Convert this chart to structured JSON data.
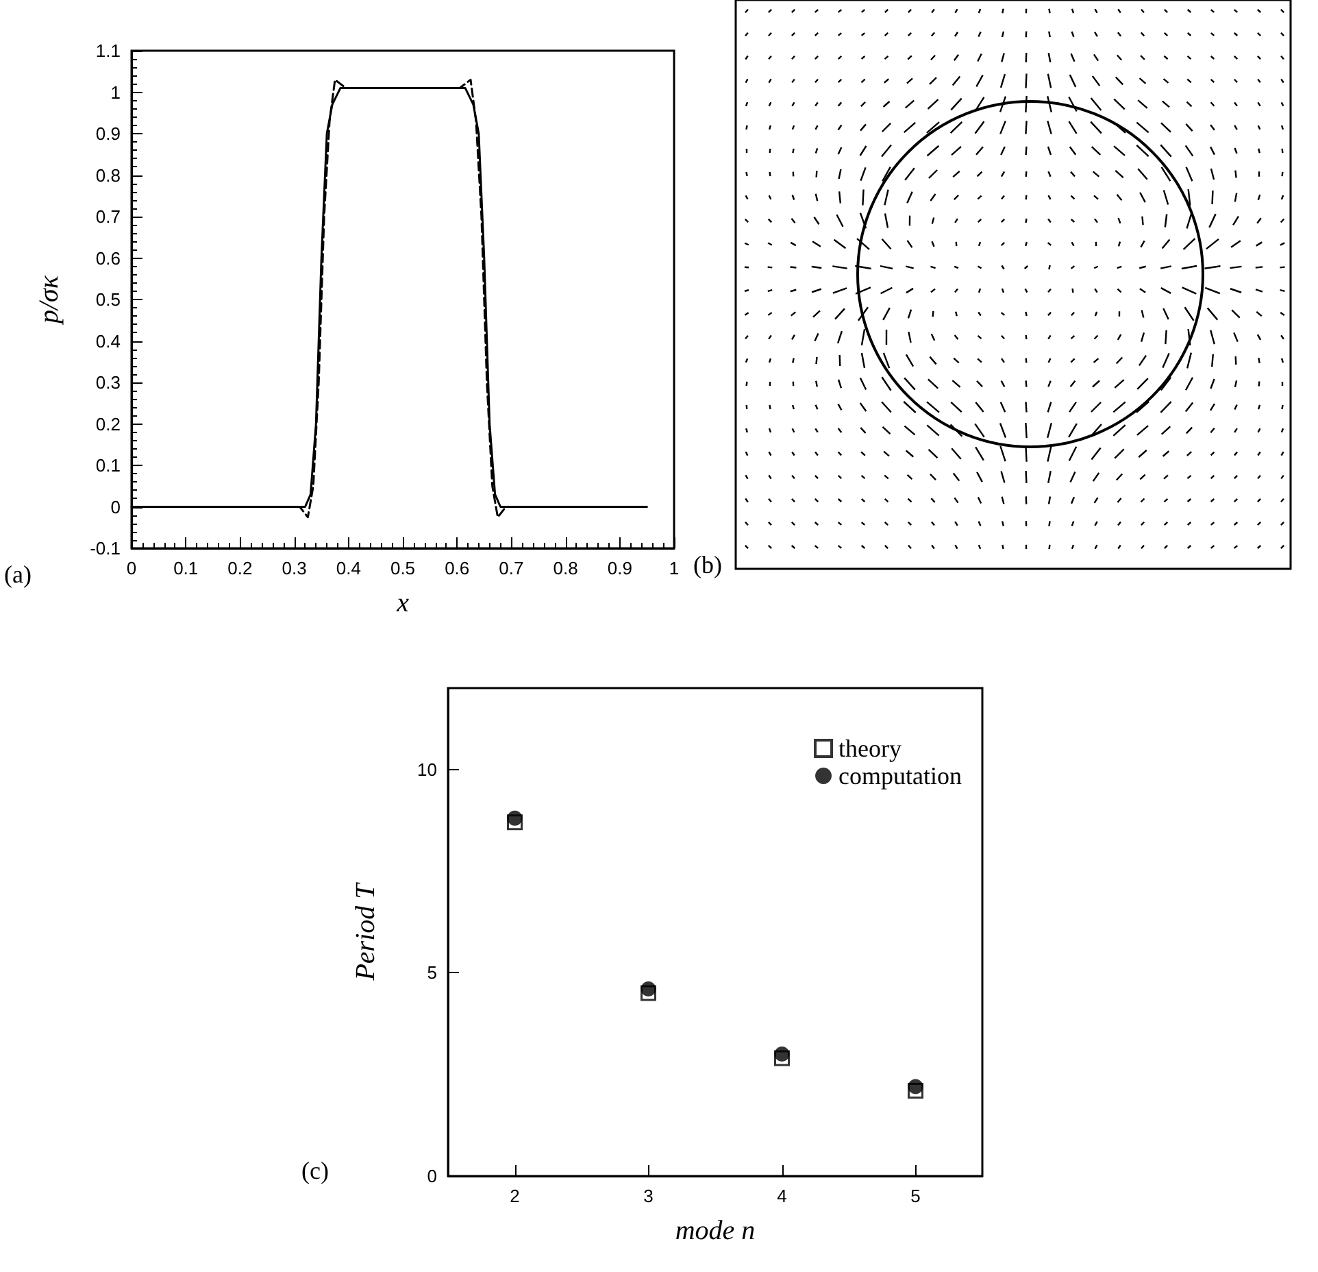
{
  "chart_data": [
    {
      "type": "line",
      "xlabel": "x",
      "ylabel": "p/σκ",
      "annotations": [
        "(a)"
      ],
      "marker": "none",
      "xlim": [
        0,
        1
      ],
      "ylim": [
        -0.1,
        1.1
      ],
      "xticks": [
        0,
        0.1,
        0.2,
        0.3,
        0.4,
        0.5,
        0.6,
        0.7,
        0.8,
        0.9,
        1
      ],
      "yticks": [
        -0.1,
        0,
        0.1,
        0.2,
        0.3,
        0.4,
        0.5,
        0.6,
        0.7,
        0.8,
        0.9,
        1,
        1.1
      ],
      "series": [
        {
          "color": "#000000",
          "line_style": "solid",
          "x": [
            0,
            0.32,
            0.33,
            0.34,
            0.35,
            0.36,
            0.37,
            0.385,
            0.615,
            0.63,
            0.64,
            0.65,
            0.66,
            0.67,
            0.68,
            0.95
          ],
          "values": [
            0,
            0,
            0.03,
            0.2,
            0.6,
            0.9,
            0.97,
            1.01,
            1.01,
            0.97,
            0.9,
            0.6,
            0.2,
            0.03,
            0,
            0
          ]
        },
        {
          "color": "#000000",
          "line_style": "dashed",
          "x": [
            0.26,
            0.31,
            0.325,
            0.335,
            0.345,
            0.355,
            0.365,
            0.375,
            0.385,
            0.395,
            0.605,
            0.615,
            0.625,
            0.635,
            0.645,
            0.655,
            0.665,
            0.675,
            0.69,
            0.75
          ],
          "values": [
            0,
            0,
            -0.025,
            0.05,
            0.3,
            0.7,
            0.93,
            1.03,
            1.02,
            1.01,
            1.01,
            1.02,
            1.03,
            0.93,
            0.7,
            0.3,
            0.05,
            -0.025,
            0,
            0
          ]
        }
      ]
    },
    {
      "type": "other",
      "annotations": [
        "(b)"
      ]
    },
    {
      "type": "scatter",
      "xlabel": "mode n",
      "ylabel": "Period T",
      "annotations": [
        "(c)"
      ],
      "legend": "top right",
      "xlim": [
        1.5,
        5.5
      ],
      "ylim": [
        0,
        12
      ],
      "xticks": [
        2,
        3,
        4,
        5
      ],
      "yticks": [
        0,
        5,
        10
      ],
      "x": [
        2,
        3,
        4,
        5
      ],
      "series": [
        {
          "name": "theory",
          "color": "#000000",
          "marker": "square",
          "values": [
            8.7,
            4.5,
            2.9,
            2.1
          ]
        },
        {
          "name": "computation",
          "color": "#000000",
          "marker": "circle",
          "values": [
            8.8,
            4.6,
            3.0,
            2.2
          ]
        }
      ]
    }
  ]
}
